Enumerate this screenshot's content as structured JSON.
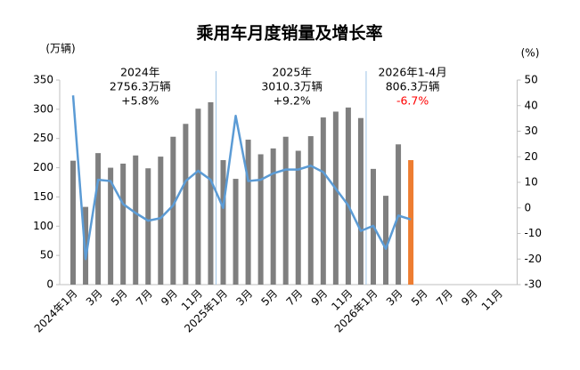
{
  "chart_data": {
    "type": "bar-line",
    "title": "乘用车月度销量及增长率",
    "y_label": "(万辆)",
    "y2_label": "(%)",
    "categories": [
      "2024年1月",
      null,
      "3月",
      null,
      "5月",
      null,
      "7月",
      null,
      "9月",
      null,
      "11月",
      null,
      "2025年1月",
      null,
      "3月",
      null,
      "5月",
      null,
      "7月",
      null,
      "9月",
      null,
      "11月",
      null,
      "2026年1月",
      null,
      "3月",
      null,
      "5月",
      null,
      "7月",
      null,
      "9月",
      null,
      "11月",
      null
    ],
    "series": [
      {
        "type": "bar",
        "color": "#7f7f7f",
        "colors": [
          "#7f7f7f",
          "#7f7f7f",
          "#7f7f7f",
          "#7f7f7f",
          "#7f7f7f",
          "#7f7f7f",
          "#7f7f7f",
          "#7f7f7f",
          "#7f7f7f",
          "#7f7f7f",
          "#7f7f7f",
          "#7f7f7f",
          "#7f7f7f",
          "#7f7f7f",
          "#7f7f7f",
          "#7f7f7f",
          "#7f7f7f",
          "#7f7f7f",
          "#7f7f7f",
          "#7f7f7f",
          "#7f7f7f",
          "#7f7f7f",
          "#7f7f7f",
          "#7f7f7f",
          "#7f7f7f",
          "#7f7f7f",
          "#7f7f7f",
          "#ed7d31",
          null,
          null,
          null,
          null,
          null,
          null,
          null,
          null
        ],
        "values": [
          212,
          133,
          225,
          200,
          207,
          221,
          199,
          219,
          253,
          275,
          301,
          312,
          213,
          181,
          248,
          223,
          233,
          253,
          229,
          254,
          286,
          296,
          303,
          285,
          198,
          152,
          240,
          213,
          null,
          null,
          null,
          null,
          null,
          null,
          null,
          null
        ]
      },
      {
        "type": "line",
        "axis": "y2",
        "color": "#5b9bd5",
        "values": [
          44,
          -20,
          11,
          10.5,
          1.5,
          -2,
          -5,
          -4,
          1,
          10.5,
          14.5,
          11,
          0,
          36,
          10.5,
          11,
          13.5,
          15,
          15,
          16.5,
          14,
          7.5,
          1,
          -9,
          -7,
          -16,
          -3,
          -4.5,
          null,
          null,
          null,
          null,
          null,
          null,
          null,
          null
        ]
      }
    ],
    "ylim": [
      0,
      350
    ],
    "yticks": [
      0,
      50,
      100,
      150,
      200,
      250,
      300,
      350
    ],
    "y2lim": [
      -30,
      50
    ],
    "y2ticks": [
      -30,
      -20,
      -10,
      0,
      10,
      20,
      30,
      40,
      50
    ],
    "annotations": [
      {
        "period": "2024年",
        "volume": "2756.3万辆",
        "growth": "+5.8%",
        "growth_color": "#000000"
      },
      {
        "period": "2025年",
        "volume": "3010.3万辆",
        "growth": "+9.2%",
        "growth_color": "#000000"
      },
      {
        "period": "2026年1-4月",
        "volume": "806.3万辆",
        "growth": "-6.7%",
        "growth_color": "#ff0000"
      }
    ]
  }
}
